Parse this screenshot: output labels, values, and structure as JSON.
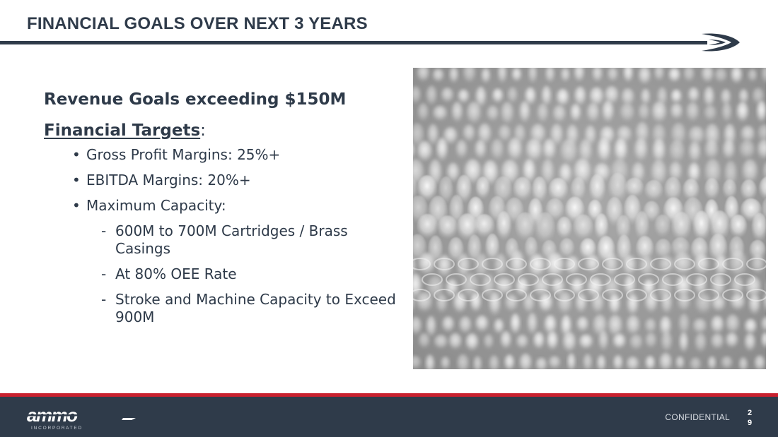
{
  "slide": {
    "title": "FINANCIAL GOALS OVER NEXT 3 YEARS",
    "headline": "Revenue Goals exceeding $150M",
    "targets_heading": "Financial Targets",
    "targets_colon": ":",
    "bullets": [
      "Gross Profit Margins: 25%+",
      "EBITDA Margins: 20%+",
      "Maximum Capacity:"
    ],
    "sub_bullets": [
      "600M to 700M Cartridges / Brass Casings",
      "At 80% OEE Rate",
      "Stroke and Machine Capacity to Exceed 900M"
    ]
  },
  "footer": {
    "logo_text": "ammo",
    "logo_subtext": "I N C O R P O R A T E D",
    "confidential": "CONFIDENTIAL",
    "page_number": "29"
  },
  "colors": {
    "title": "#2f3b4a",
    "accent_red": "#c8202e",
    "footer_bg": "#2f3b4a"
  },
  "icons": {
    "header_logo": "chevron-swoosh-icon",
    "photo": "bullet-cartridges-photo"
  }
}
